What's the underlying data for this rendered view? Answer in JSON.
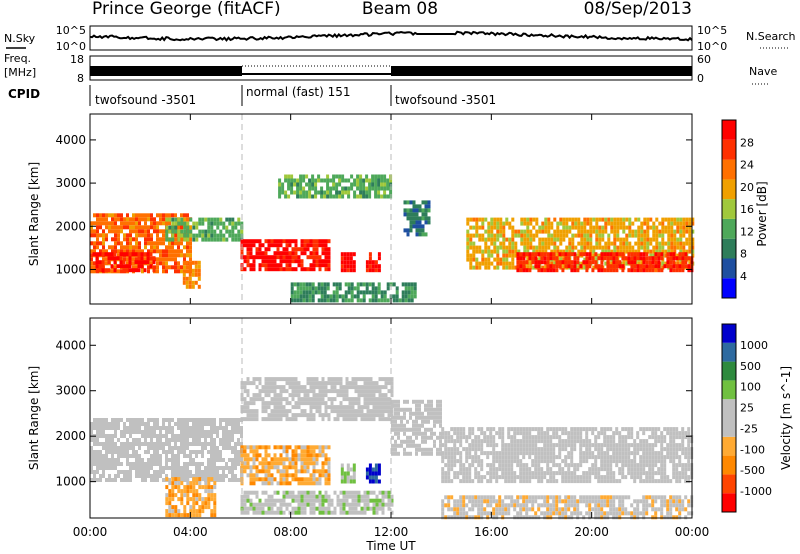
{
  "header": {
    "title_left": "Prince George (fitACF)",
    "title_center": "Beam 08",
    "title_right": "08/Sep/2013"
  },
  "top_panel": {
    "left_label": "N.Sky",
    "right_label": "N.Search",
    "y_ticks": [
      "10^5",
      "10^0"
    ]
  },
  "freq_panel": {
    "left_label_line1": "Freq.",
    "left_label_line2": "[MHz]",
    "right_label": "Nave",
    "left_ticks": [
      "18",
      "8"
    ],
    "right_ticks": [
      "60",
      "0"
    ]
  },
  "cpid": {
    "label": "CPID",
    "segments": [
      {
        "name": "twofsound -3501",
        "start_hour": 0,
        "end_hour": 6
      },
      {
        "name": "normal (fast) 151",
        "start_hour": 6,
        "end_hour": 12
      },
      {
        "name": "twofsound -3501",
        "start_hour": 12,
        "end_hour": 24
      }
    ]
  },
  "axes": {
    "x_label": "Time UT",
    "x_ticks": [
      "00:00",
      "04:00",
      "08:00",
      "12:00",
      "16:00",
      "20:00",
      "00:00"
    ],
    "y_label": "Slant Range [km]",
    "y_ticks": [
      "1000",
      "2000",
      "3000",
      "4000"
    ]
  },
  "colors": {
    "power_scale": [
      "#0000ff",
      "#1e4fa0",
      "#2e7d5a",
      "#4ea85a",
      "#a0c83c",
      "#f0a000",
      "#ff7000",
      "#ff3000",
      "#ff0000"
    ],
    "velocity_scale": [
      "#ff0000",
      "#ff4400",
      "#ff8800",
      "#ffaa33",
      "#c0c0c0",
      "#c0c0c0",
      "#70c040",
      "#2e8a3e",
      "#2e6aa0",
      "#0000cc"
    ]
  },
  "chart_data": [
    {
      "type": "heatmap",
      "title": "Power",
      "quantity": "Power",
      "xlabel": "Time UT",
      "ylabel": "Slant Range [km]",
      "xlim": [
        0,
        24
      ],
      "ylim": [
        200,
        4600
      ],
      "colorbar": {
        "label": "Power [dB]",
        "ticks": [
          "4",
          "8",
          "12",
          "16",
          "20",
          "24",
          "28"
        ],
        "range": [
          0,
          30
        ]
      },
      "regions": [
        {
          "t0": 0.0,
          "t1": 4.0,
          "r0": 1000,
          "r1": 2300,
          "value": 22
        },
        {
          "t0": 0.1,
          "t1": 2.5,
          "r0": 1000,
          "r1": 1400,
          "value": 28
        },
        {
          "t0": 3.0,
          "t1": 6.0,
          "r0": 1700,
          "r1": 2200,
          "value": 12
        },
        {
          "t0": 3.7,
          "t1": 4.4,
          "r0": 600,
          "r1": 1200,
          "value": 20
        },
        {
          "t0": 6.0,
          "t1": 9.5,
          "r0": 1000,
          "r1": 1700,
          "value": 28
        },
        {
          "t0": 10.0,
          "t1": 10.5,
          "r0": 1000,
          "r1": 1400,
          "value": 28
        },
        {
          "t0": 11.0,
          "t1": 11.5,
          "r0": 1000,
          "r1": 1400,
          "value": 28
        },
        {
          "t0": 7.5,
          "t1": 12.0,
          "r0": 2700,
          "r1": 3200,
          "value": 12
        },
        {
          "t0": 8.0,
          "t1": 13.0,
          "r0": 300,
          "r1": 700,
          "value": 10
        },
        {
          "t0": 12.5,
          "t1": 13.5,
          "r0": 1800,
          "r1": 2600,
          "value": 8
        },
        {
          "t0": 15.0,
          "t1": 24.0,
          "r0": 1000,
          "r1": 2200,
          "value": 18
        },
        {
          "t0": 17.0,
          "t1": 24.0,
          "r0": 1000,
          "r1": 1400,
          "value": 26
        }
      ]
    },
    {
      "type": "heatmap",
      "title": "Velocity",
      "quantity": "Velocity",
      "xlabel": "Time UT",
      "ylabel": "Slant Range [km]",
      "xlim": [
        0,
        24
      ],
      "ylim": [
        200,
        4600
      ],
      "colorbar": {
        "label": "Velocity [m s^-1]",
        "ticks": [
          "-1000",
          "-500",
          "-100",
          "-25",
          "25",
          "100",
          "500",
          "1000"
        ],
        "range": [
          -1000,
          1000
        ]
      },
      "regions": [
        {
          "t0": 0.0,
          "t1": 6.0,
          "r0": 1000,
          "r1": 2400,
          "value": 0
        },
        {
          "t0": 3.0,
          "t1": 5.0,
          "r0": 300,
          "r1": 1100,
          "value": -300
        },
        {
          "t0": 6.0,
          "t1": 9.5,
          "r0": 1000,
          "r1": 1800,
          "value": -300
        },
        {
          "t0": 10.0,
          "t1": 10.5,
          "r0": 1000,
          "r1": 1400,
          "value": 200
        },
        {
          "t0": 11.0,
          "t1": 11.5,
          "r0": 1000,
          "r1": 1400,
          "value": 800
        },
        {
          "t0": 6.0,
          "t1": 12.0,
          "r0": 2400,
          "r1": 3300,
          "value": 0
        },
        {
          "t0": 6.0,
          "t1": 12.0,
          "r0": 300,
          "r1": 800,
          "value": 100
        },
        {
          "t0": 12.0,
          "t1": 14.0,
          "r0": 1600,
          "r1": 2800,
          "value": 0
        },
        {
          "t0": 14.0,
          "t1": 24.0,
          "r0": 1000,
          "r1": 2200,
          "value": 0
        },
        {
          "t0": 14.0,
          "t1": 24.0,
          "r0": 200,
          "r1": 700,
          "value": -100
        }
      ]
    }
  ]
}
